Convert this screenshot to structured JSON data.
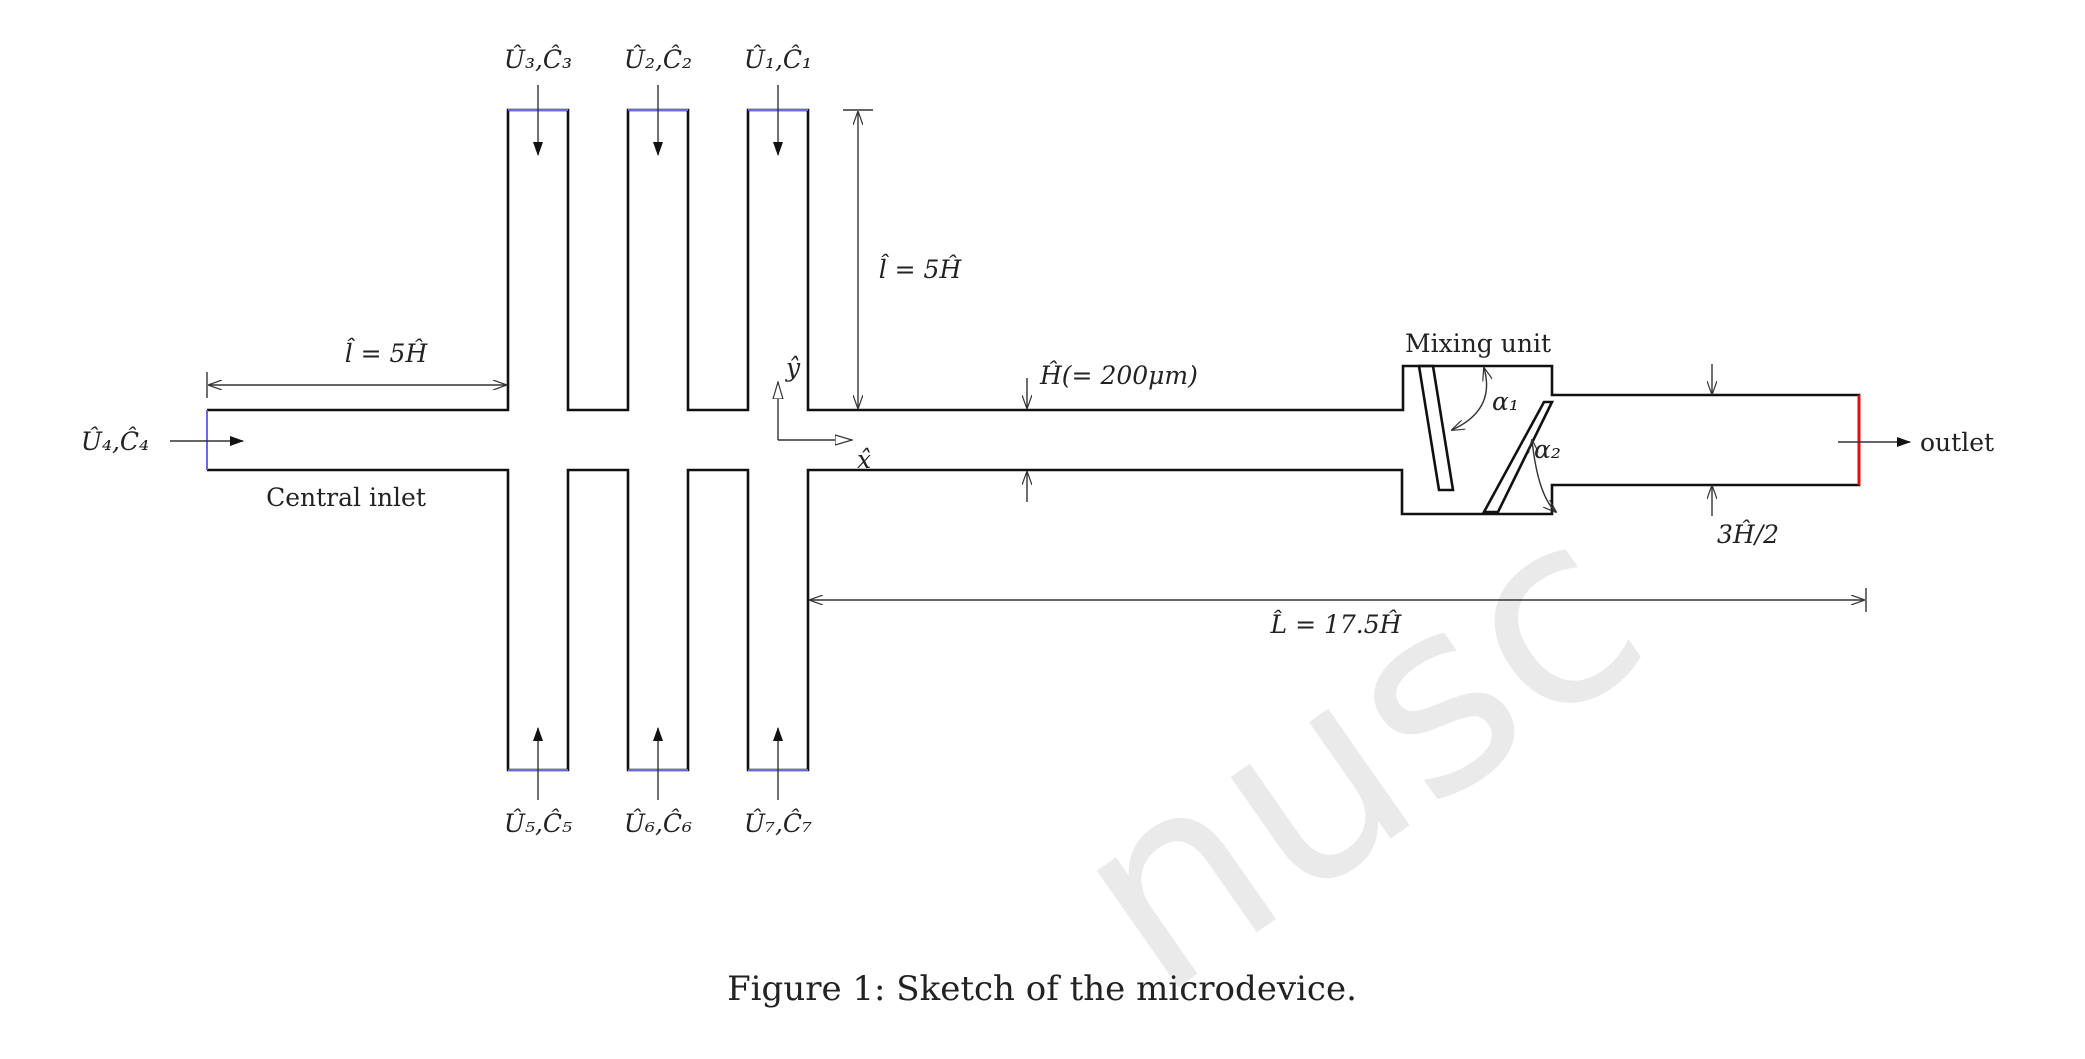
{
  "labels": {
    "u3c3": "Û₃,Ĉ₃",
    "u2c2": "Û₂,Ĉ₂",
    "u1c1": "Û₁,Ĉ₁",
    "u4c4": "Û₄,Ĉ₄",
    "u5c5": "Û₅,Ĉ₅",
    "u6c6": "Û₆,Ĉ₆",
    "u7c7": "Û₇,Ĉ₇",
    "l_top": "l̂ = 5Ĥ",
    "l_left": "l̂ = 5Ĥ",
    "H_dim": "Ĥ(= 200μm)",
    "mixing_unit": "Mixing unit",
    "alpha1": "α₁",
    "alpha2": "α₂",
    "outlet": "outlet",
    "three_H": "3Ĥ/2",
    "L_dim": "L̂ = 17.5Ĥ",
    "central_inlet": "Central inlet",
    "x_axis": "x̂",
    "y_axis": "ŷ",
    "watermark": "nusc"
  },
  "caption": "Figure 1: Sketch of the microdevice.",
  "colors": {
    "wall": "#111111",
    "inlet": "#6a6ae0",
    "outlet": "#e01010"
  }
}
